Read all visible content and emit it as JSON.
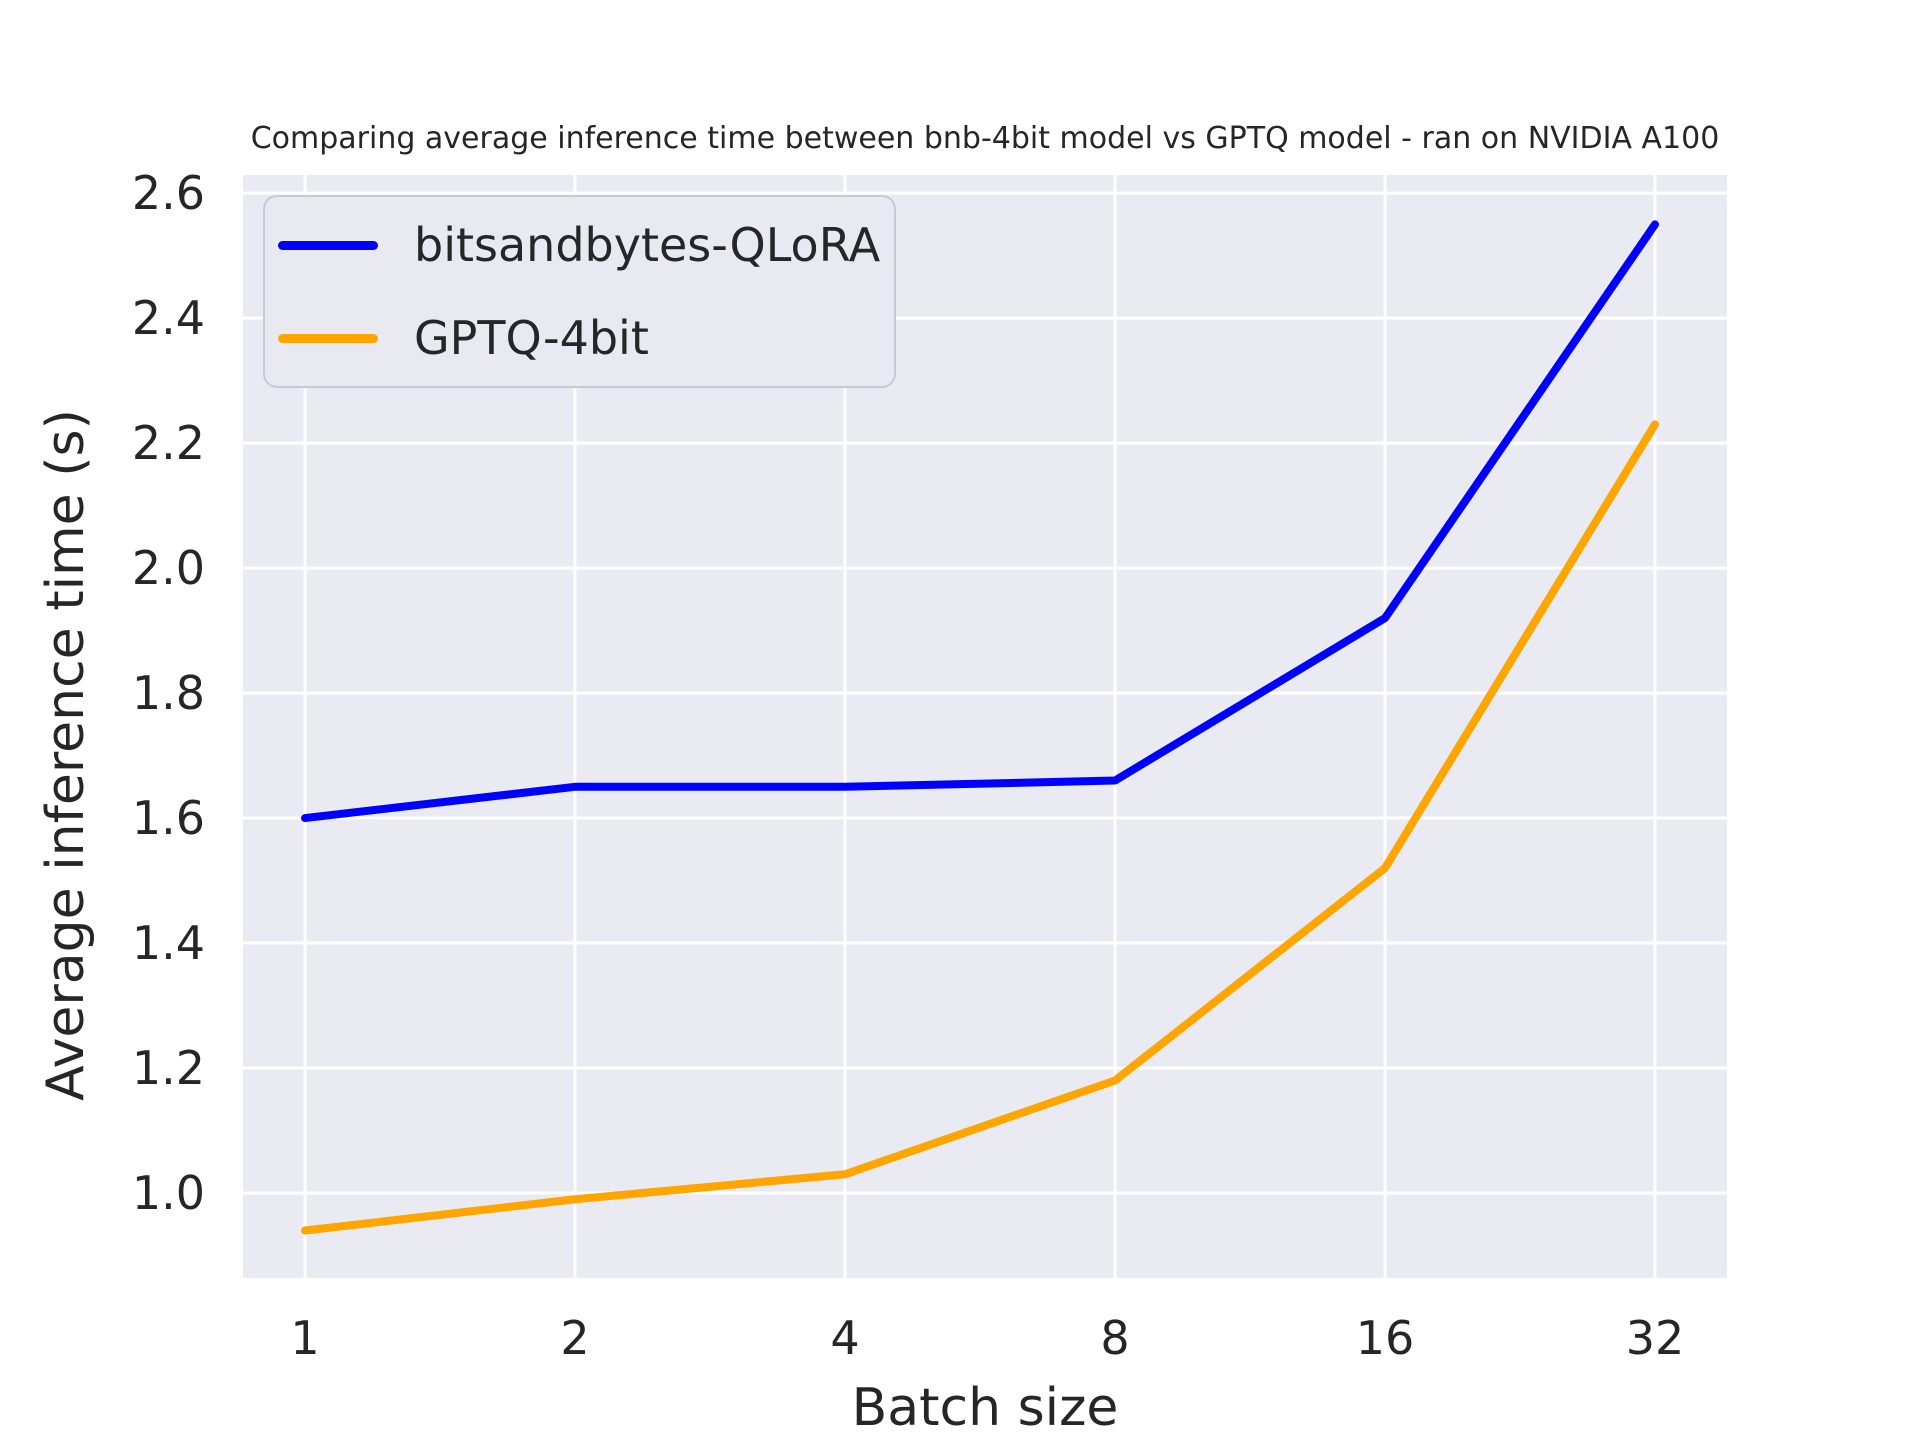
{
  "chart_data": {
    "type": "line",
    "title": "Comparing average inference time between bnb-4bit model vs GPTQ model - ran on NVIDIA A100",
    "xlabel": "Batch size",
    "ylabel": "Average inference time (s)",
    "categories": [
      "1",
      "2",
      "4",
      "8",
      "16",
      "32"
    ],
    "x_scale": "log2",
    "series": [
      {
        "name": "bitsandbytes-QLoRA",
        "color": "#0000ff",
        "values": [
          1.6,
          1.65,
          1.65,
          1.66,
          1.92,
          2.55
        ]
      },
      {
        "name": "GPTQ-4bit",
        "color": "#ffa500",
        "values": [
          0.94,
          0.99,
          1.03,
          1.18,
          1.52,
          2.23
        ]
      }
    ],
    "yticks": [
      1.0,
      1.2,
      1.4,
      1.6,
      1.8,
      2.0,
      2.2,
      2.4,
      2.6
    ],
    "ytick_labels": [
      "1.0",
      "1.2",
      "1.4",
      "1.6",
      "1.8",
      "2.0",
      "2.2",
      "2.4",
      "2.6"
    ],
    "ylim": [
      0.864,
      2.629
    ],
    "grid": true,
    "legend_position": "upper left",
    "colors": {
      "plot_background": "#eaeaf2",
      "figure_background": "#ffffff",
      "gridline": "#ffffff",
      "text": "#262626"
    }
  }
}
